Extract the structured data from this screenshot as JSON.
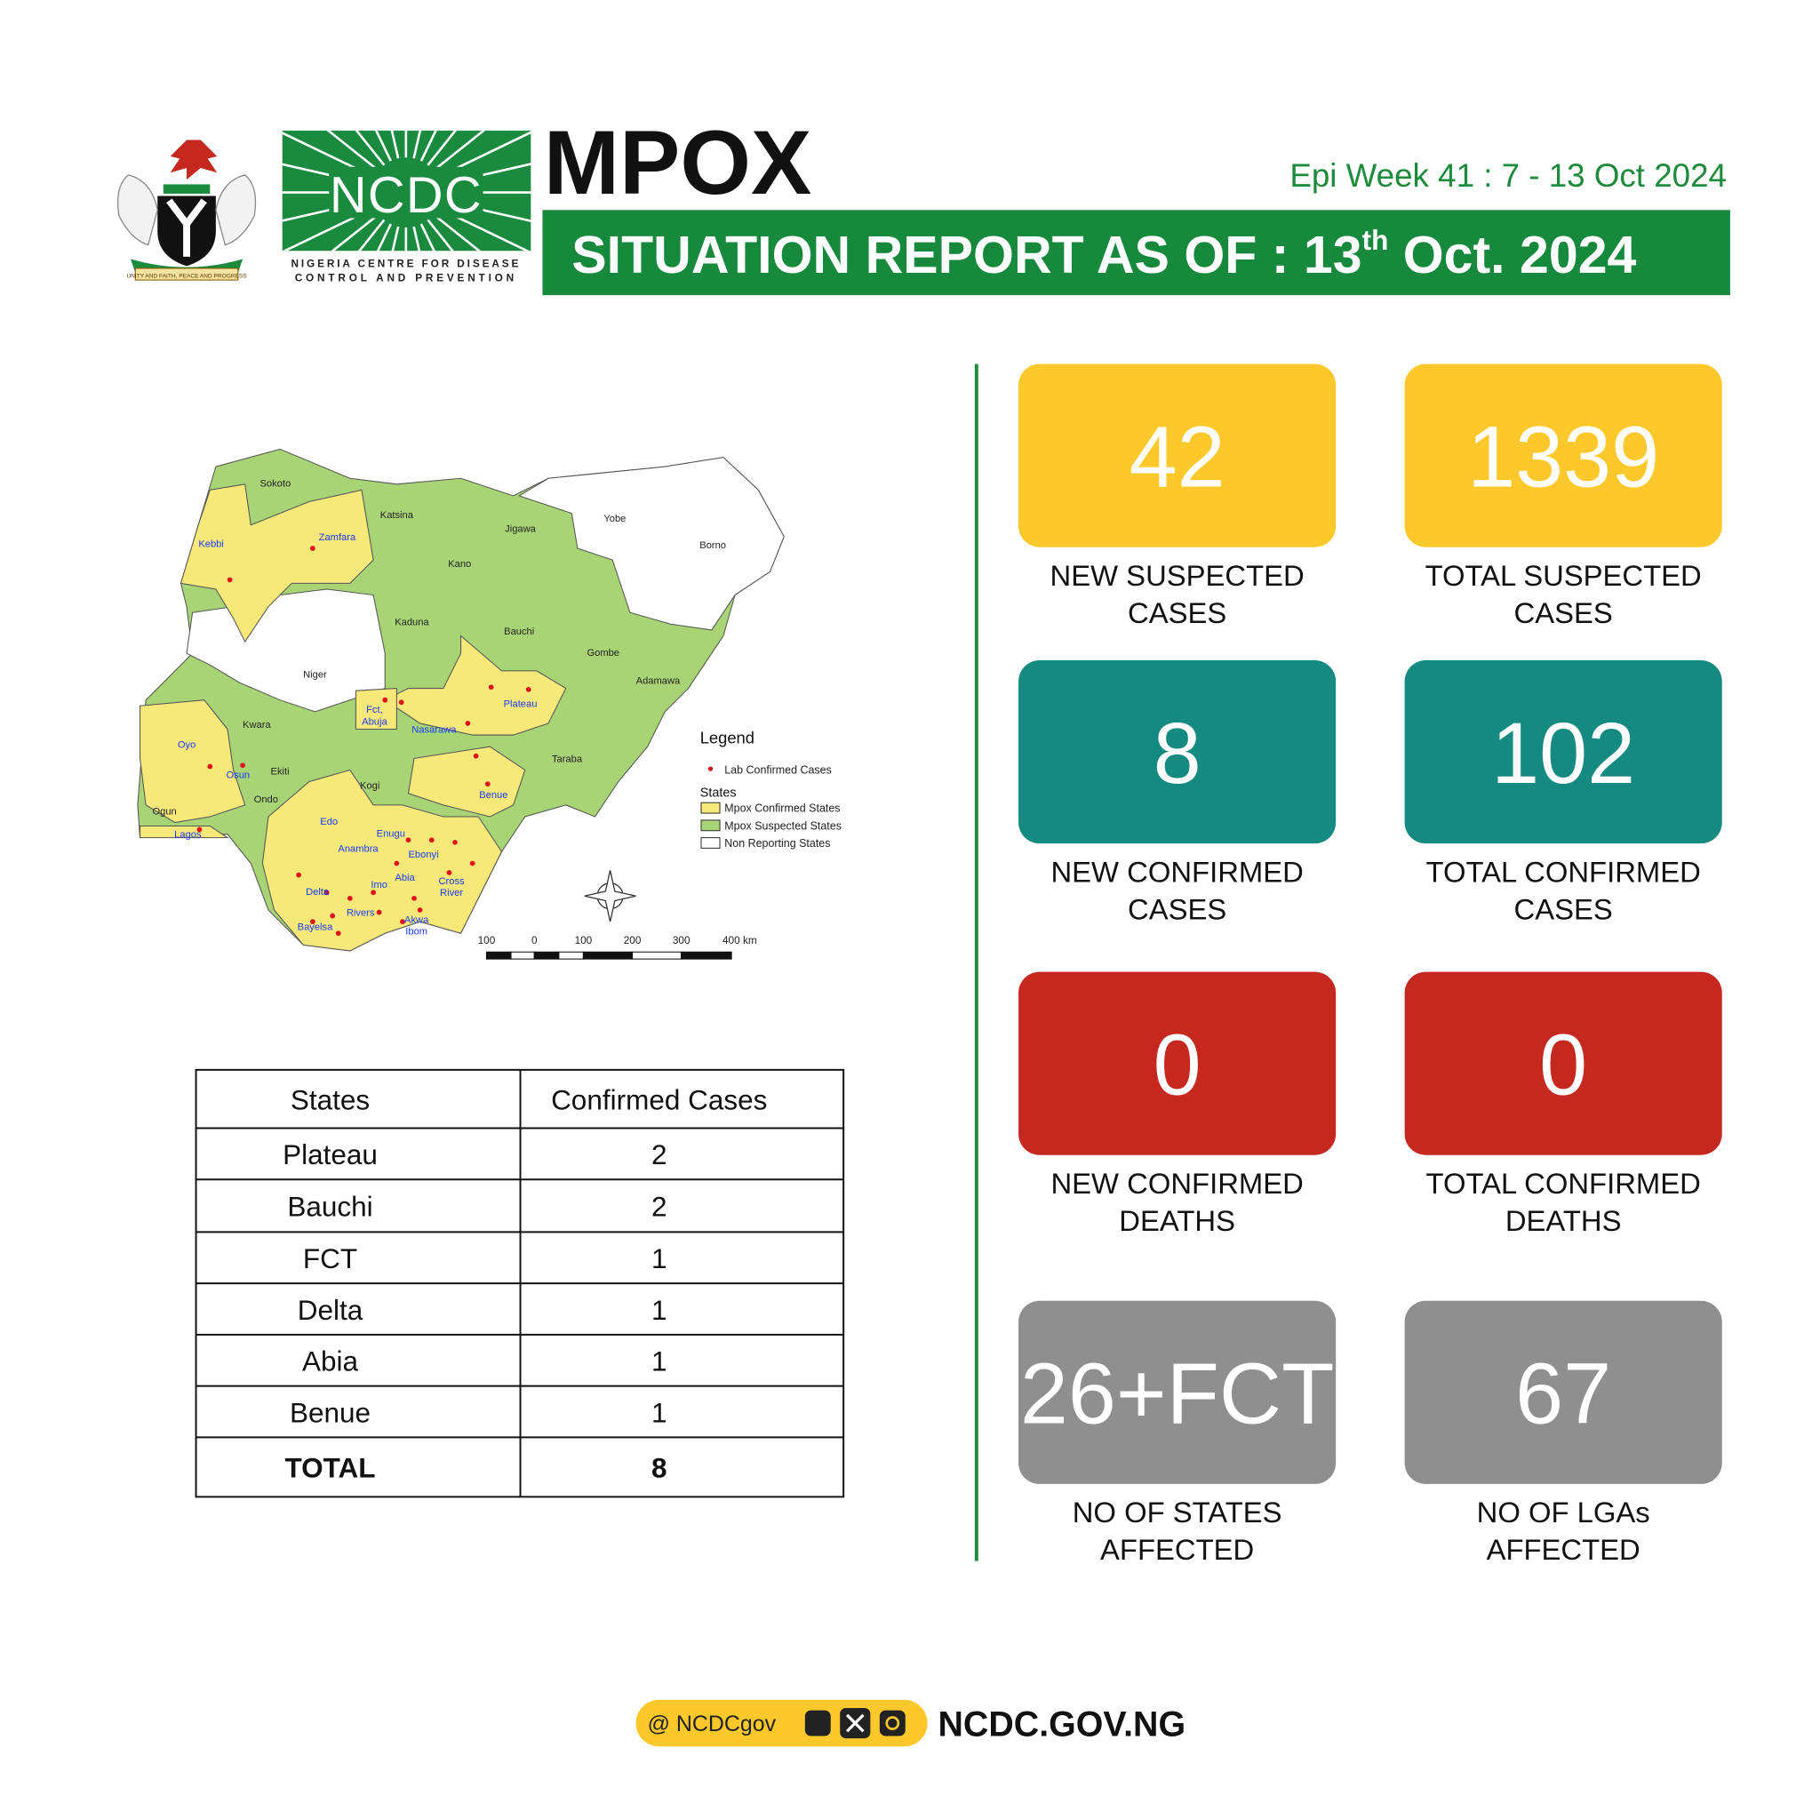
{
  "header": {
    "title": "MPOX",
    "epi_week": "Epi Week 41 :  7 - 13 Oct 2024",
    "report_prefix": "SITUATION REPORT AS OF : 13",
    "report_sup": "th",
    "report_suffix": " Oct. 2024",
    "logo_name": "NCDC",
    "logo_sub_lines": [
      "NIGERIA CENTRE FOR DISEASE",
      "CONTROL AND PREVENTION"
    ],
    "motto": "UNITY AND FAITH, PEACE AND PROGRESS"
  },
  "map": {
    "labels": [
      {
        "lines": [
          "Sokoto"
        ],
        "color": "#222222"
      },
      {
        "lines": [
          "Kebbi"
        ],
        "color": "#1a3cff"
      },
      {
        "lines": [
          "Zamfara"
        ],
        "color": "#1a3cff"
      },
      {
        "lines": [
          "Katsina"
        ],
        "color": "#222222"
      },
      {
        "lines": [
          "Kano"
        ],
        "color": "#222222"
      },
      {
        "lines": [
          "Jigawa"
        ],
        "color": "#222222"
      },
      {
        "lines": [
          "Yobe"
        ],
        "color": "#222222"
      },
      {
        "lines": [
          "Borno"
        ],
        "color": "#222222"
      },
      {
        "lines": [
          "Kaduna"
        ],
        "color": "#222222"
      },
      {
        "lines": [
          "Bauchi"
        ],
        "color": "#222222"
      },
      {
        "lines": [
          "Gombe"
        ],
        "color": "#222222"
      },
      {
        "lines": [
          "Niger"
        ],
        "color": "#222222"
      },
      {
        "lines": [
          "Adamawa"
        ],
        "color": "#222222"
      },
      {
        "lines": [
          "Plateau"
        ],
        "color": "#1a3cff"
      },
      {
        "lines": [
          "Fct,",
          "Abuja"
        ],
        "color": "#1a3cff"
      },
      {
        "lines": [
          "Nasarawa"
        ],
        "color": "#1a3cff"
      },
      {
        "lines": [
          "Kwara"
        ],
        "color": "#222222"
      },
      {
        "lines": [
          "Oyo"
        ],
        "color": "#1a3cff"
      },
      {
        "lines": [
          "Taraba"
        ],
        "color": "#222222"
      },
      {
        "lines": [
          "Osun"
        ],
        "color": "#1a3cff"
      },
      {
        "lines": [
          "Ekiti"
        ],
        "color": "#222222"
      },
      {
        "lines": [
          "Kogi"
        ],
        "color": "#222222"
      },
      {
        "lines": [
          "Ondo"
        ],
        "color": "#222222"
      },
      {
        "lines": [
          "Benue"
        ],
        "color": "#1a3cff"
      },
      {
        "lines": [
          "Ogun"
        ],
        "color": "#222222"
      },
      {
        "lines": [
          "Edo"
        ],
        "color": "#1a3cff"
      },
      {
        "lines": [
          "Lagos"
        ],
        "color": "#1a3cff"
      },
      {
        "lines": [
          "Enugu"
        ],
        "color": "#1a3cff"
      },
      {
        "lines": [
          "Anambra"
        ],
        "color": "#1a3cff"
      },
      {
        "lines": [
          "Ebonyi"
        ],
        "color": "#1a3cff"
      },
      {
        "lines": [
          "Imo"
        ],
        "color": "#1a3cff"
      },
      {
        "lines": [
          "Abia"
        ],
        "color": "#1a3cff"
      },
      {
        "lines": [
          "Cross",
          "River"
        ],
        "color": "#1a3cff"
      },
      {
        "lines": [
          "Delta"
        ],
        "color": "#1a3cff"
      },
      {
        "lines": [
          "Rivers"
        ],
        "color": "#1a3cff"
      },
      {
        "lines": [
          "Akwa",
          "Ibom"
        ],
        "color": "#1a3cff"
      },
      {
        "lines": [
          "Bayelsa"
        ],
        "color": "#1a3cff"
      }
    ],
    "legend_title": "Legend",
    "legend_point": "Lab Confirmed Cases",
    "legend_states_heading": "States",
    "legend_states": [
      {
        "label": "Mpox Confirmed States",
        "color": "#f7e87a"
      },
      {
        "label": "Mpox Suspected States",
        "color": "#a8d476"
      },
      {
        "label": "Non Reporting States",
        "color": "#ffffff"
      }
    ],
    "scale_labels": [
      100,
      0,
      100,
      200,
      300,
      "400 km"
    ]
  },
  "table": {
    "header": [
      "States",
      "Confirmed Cases"
    ],
    "rows": [
      [
        "Plateau",
        2
      ],
      [
        "Bauchi",
        2
      ],
      [
        "FCT",
        1
      ],
      [
        "Delta",
        1
      ],
      [
        "Abia",
        1
      ],
      [
        "Benue",
        1
      ]
    ],
    "total": [
      "TOTAL",
      8
    ]
  },
  "cards": [
    {
      "value": 42,
      "label_lines": [
        "NEW SUSPECTED",
        "CASES"
      ],
      "color": "#fcc82c"
    },
    {
      "value": 1339,
      "label_lines": [
        "TOTAL SUSPECTED",
        "CASES"
      ],
      "color": "#fcc82c"
    },
    {
      "value": 8,
      "label_lines": [
        "NEW CONFIRMED",
        "CASES"
      ],
      "color": "#148a80"
    },
    {
      "value": 102,
      "label_lines": [
        "TOTAL CONFIRMED",
        "CASES"
      ],
      "color": "#148a80"
    },
    {
      "value": 0,
      "label_lines": [
        "NEW CONFIRMED",
        "DEATHS"
      ],
      "color": "#c4281f"
    },
    {
      "value": 0,
      "label_lines": [
        "TOTAL CONFIRMED",
        "DEATHS"
      ],
      "color": "#c4281f"
    },
    {
      "value": "26+FCT",
      "label_lines": [
        "NO OF STATES",
        "AFFECTED"
      ],
      "color": "#8f8f8f"
    },
    {
      "value": 67,
      "label_lines": [
        "NO OF LGAs",
        "AFFECTED"
      ],
      "color": "#8f8f8f"
    }
  ],
  "footer": {
    "handle": "@ NCDCgov",
    "site": "NCDC.GOV.NG"
  }
}
